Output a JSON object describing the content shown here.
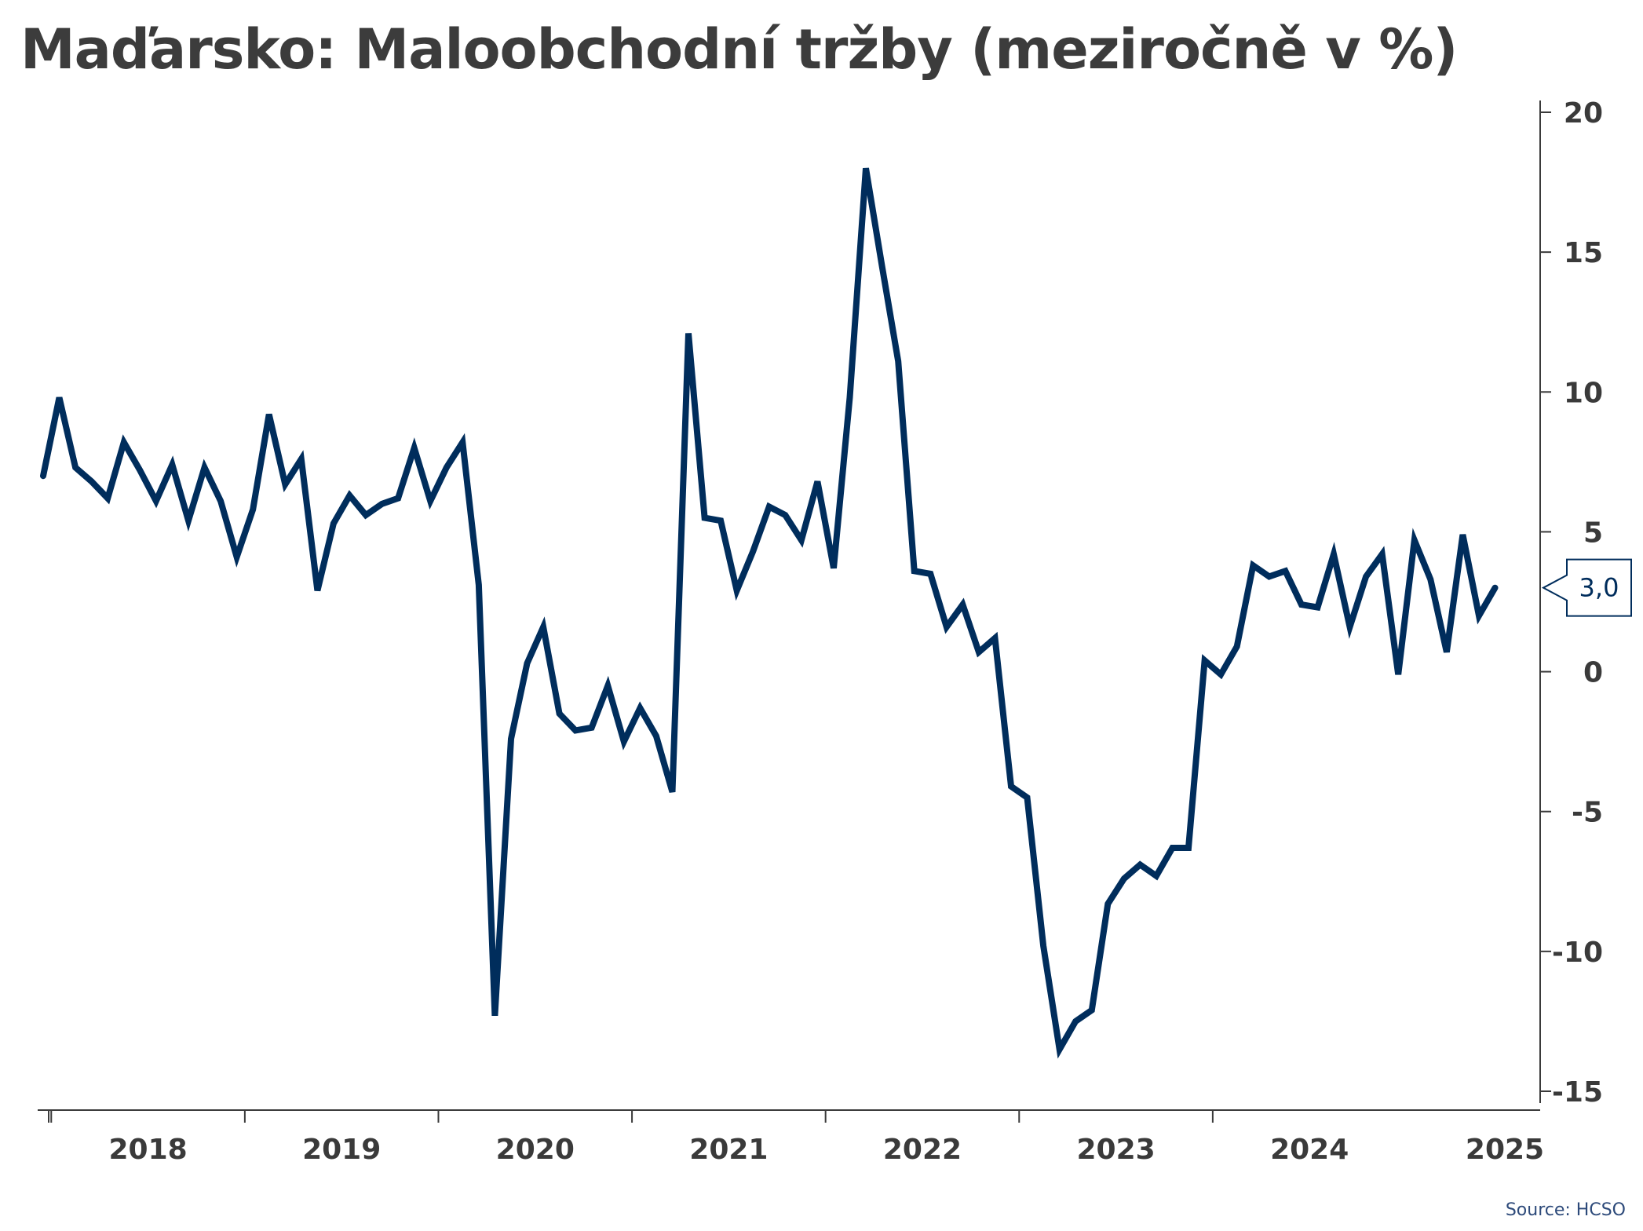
{
  "title": "Maďarsko: Maloobchodní tržby (meziročně v %)",
  "source": "Source: HCSO",
  "colors": {
    "series": "#002d5c",
    "text": "#3c3c3c",
    "axis": "#3a3a3a"
  },
  "chart_data": {
    "type": "line",
    "title": "Maďarsko: Maloobchodní tržby (meziročně v %)",
    "xlabel": "",
    "ylabel": "",
    "ylim": [
      -15,
      20
    ],
    "yticks": [
      20,
      15,
      10,
      5,
      0,
      -5,
      -10,
      -15
    ],
    "ytick_labels": [
      "20",
      "15",
      "10",
      "5",
      "0",
      "-5",
      "-10",
      "-15"
    ],
    "xtick_labels": [
      "2018",
      "2019",
      "2020",
      "2021",
      "2022",
      "2023",
      "2024",
      "2025"
    ],
    "x_start": "2017-12",
    "frequency": "monthly",
    "grid": false,
    "legend": "none",
    "last_value_label": "3,0",
    "series": [
      {
        "values": [
          7.0,
          9.8,
          7.3,
          6.8,
          6.2,
          8.2,
          7.2,
          6.1,
          7.4,
          5.4,
          7.3,
          6.1,
          4.1,
          5.8,
          9.2,
          6.7,
          7.6,
          2.9,
          5.3,
          6.3,
          5.6,
          6.0,
          6.2,
          8.0,
          6.1,
          7.3,
          8.2,
          3.1,
          -12.3,
          -2.4,
          0.3,
          1.6,
          -1.5,
          -2.1,
          -2.0,
          -0.5,
          -2.5,
          -1.3,
          -2.3,
          -4.3,
          12.1,
          5.5,
          5.4,
          2.9,
          4.3,
          5.9,
          5.6,
          4.7,
          6.8,
          3.7,
          9.8,
          18.0,
          14.5,
          11.1,
          3.6,
          3.5,
          1.6,
          2.4,
          0.7,
          1.2,
          -4.1,
          -4.5,
          -9.8,
          -13.5,
          -12.5,
          -12.1,
          -8.3,
          -7.4,
          -6.9,
          -7.3,
          -6.3,
          -6.3,
          0.4,
          -0.1,
          0.9,
          3.8,
          3.4,
          3.6,
          2.4,
          2.3,
          4.2,
          1.6,
          3.4,
          4.2,
          -0.1,
          4.7,
          3.3,
          0.7,
          4.9,
          2.0,
          3.0
        ]
      }
    ]
  }
}
